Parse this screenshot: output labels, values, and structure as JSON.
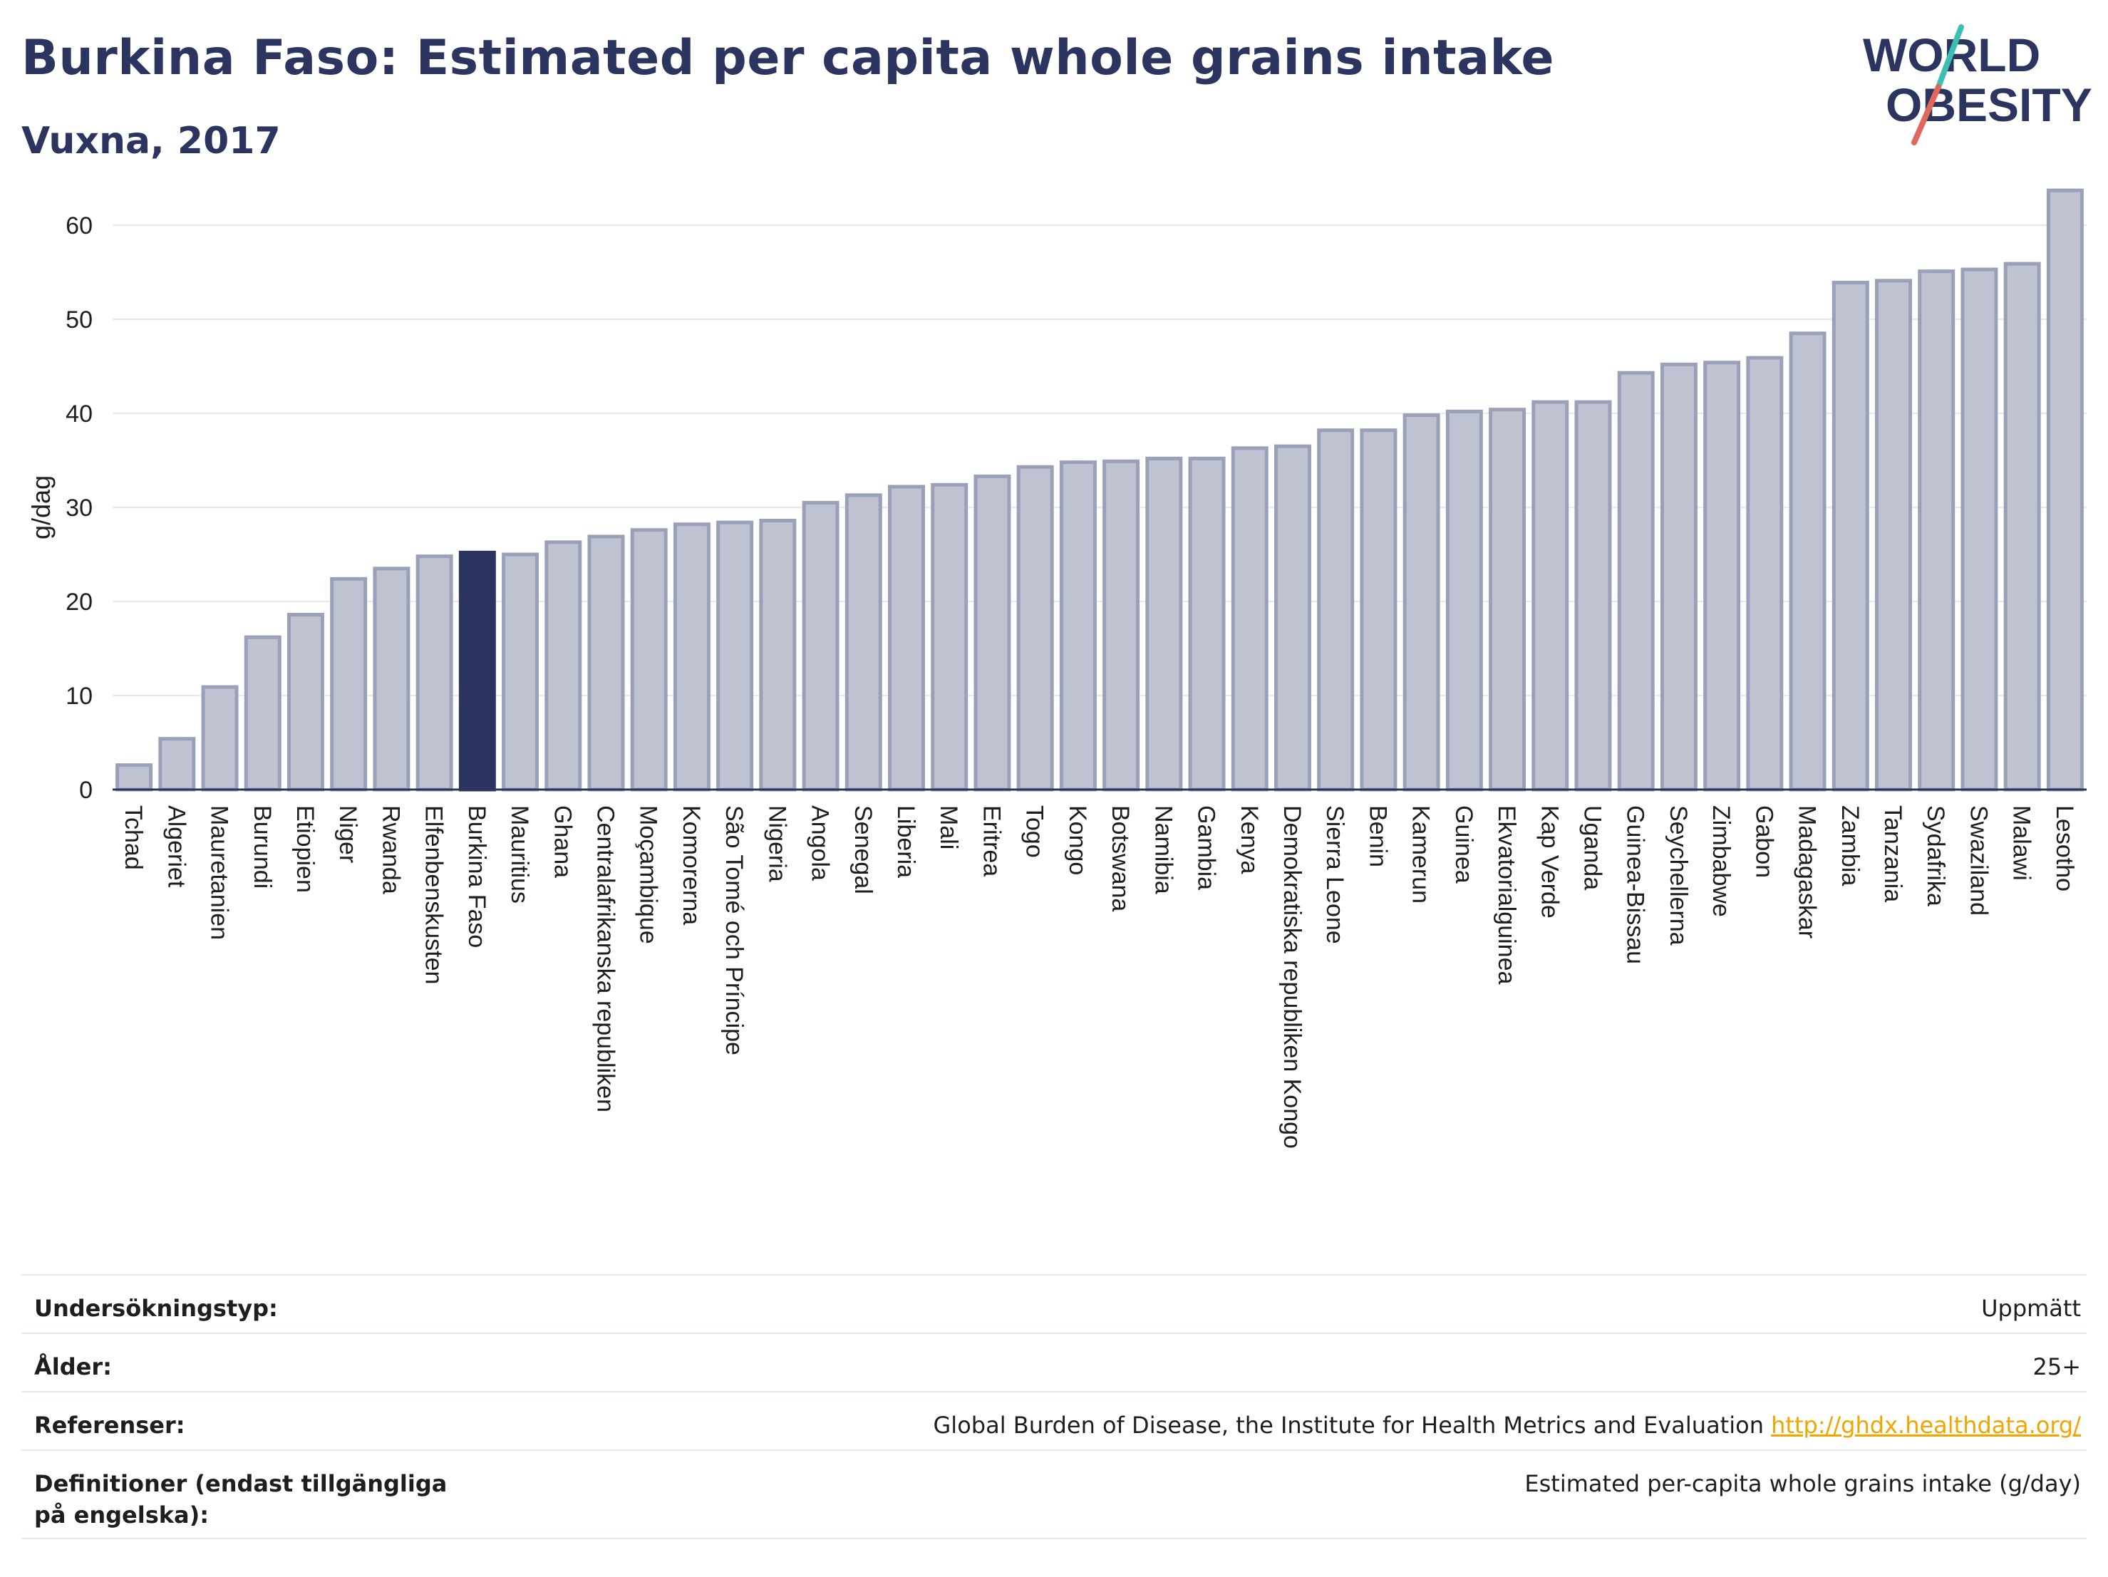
{
  "header": {
    "title": "Burkina Faso: Estimated per capita whole grains intake",
    "subtitle": "Vuxna, 2017",
    "logo": {
      "line1": "WORLD",
      "line2": "OBESITY",
      "teal": "#3bbfb0",
      "red": "#e0675a",
      "navy": "#2b3560"
    }
  },
  "chart_data": {
    "type": "bar",
    "ylabel": "g/dag",
    "xlabel": "",
    "ylim": [
      0,
      65
    ],
    "yticks": [
      0,
      10,
      20,
      30,
      40,
      50,
      60
    ],
    "grid": true,
    "highlight": "Burkina Faso",
    "colors": {
      "bar": "#bfc3d1",
      "bar_border": "#9aa0b8",
      "highlight": "#2b3560",
      "grid": "#e6e8ef",
      "axis": "#2b3560"
    },
    "categories": [
      "Tchad",
      "Algeriet",
      "Mauretanien",
      "Burundi",
      "Etiopien",
      "Niger",
      "Rwanda",
      "Elfenbenskusten",
      "Burkina Faso",
      "Mauritius",
      "Ghana",
      "Centralafrikanska republiken",
      "Moçambique",
      "Komorerna",
      "São Tomé och Príncipe",
      "Nigeria",
      "Angola",
      "Senegal",
      "Liberia",
      "Mali",
      "Eritrea",
      "Togo",
      "Kongo",
      "Botswana",
      "Namibia",
      "Gambia",
      "Kenya",
      "Demokratiska republiken Kongo",
      "Sierra Leone",
      "Benin",
      "Kamerun",
      "Guinea",
      "Ekvatorialguinea",
      "Kap Verde",
      "Uganda",
      "Guinea-Bissau",
      "Seychellerna",
      "Zimbabwe",
      "Gabon",
      "Madagaskar",
      "Zambia",
      "Tanzania",
      "Sydafrika",
      "Swaziland",
      "Malawi",
      "Lesotho"
    ],
    "values": [
      2.6,
      5.4,
      10.9,
      16.2,
      18.6,
      22.4,
      23.5,
      24.8,
      25.2,
      25.0,
      26.3,
      26.9,
      27.6,
      28.2,
      28.4,
      28.6,
      30.5,
      31.3,
      32.2,
      32.4,
      33.3,
      34.3,
      34.8,
      34.9,
      35.2,
      35.2,
      36.3,
      36.5,
      38.2,
      38.2,
      39.8,
      40.2,
      40.4,
      41.2,
      41.2,
      44.3,
      45.2,
      45.4,
      45.9,
      48.5,
      53.9,
      54.1,
      55.1,
      55.3,
      55.9,
      63.7
    ]
  },
  "footer": {
    "rows": [
      {
        "label": "Undersökningstyp:",
        "value": "Uppmätt"
      },
      {
        "label": "Ålder:",
        "value": "25+"
      },
      {
        "label": "Referenser:",
        "value": "Global Burden of Disease, the Institute for Health Metrics and Evaluation",
        "link": "http://ghdx.healthdata.org/"
      },
      {
        "label": "Definitioner (endast tillgängliga på engelska):",
        "value": "Estimated per-capita whole grains intake (g/day)"
      }
    ]
  }
}
